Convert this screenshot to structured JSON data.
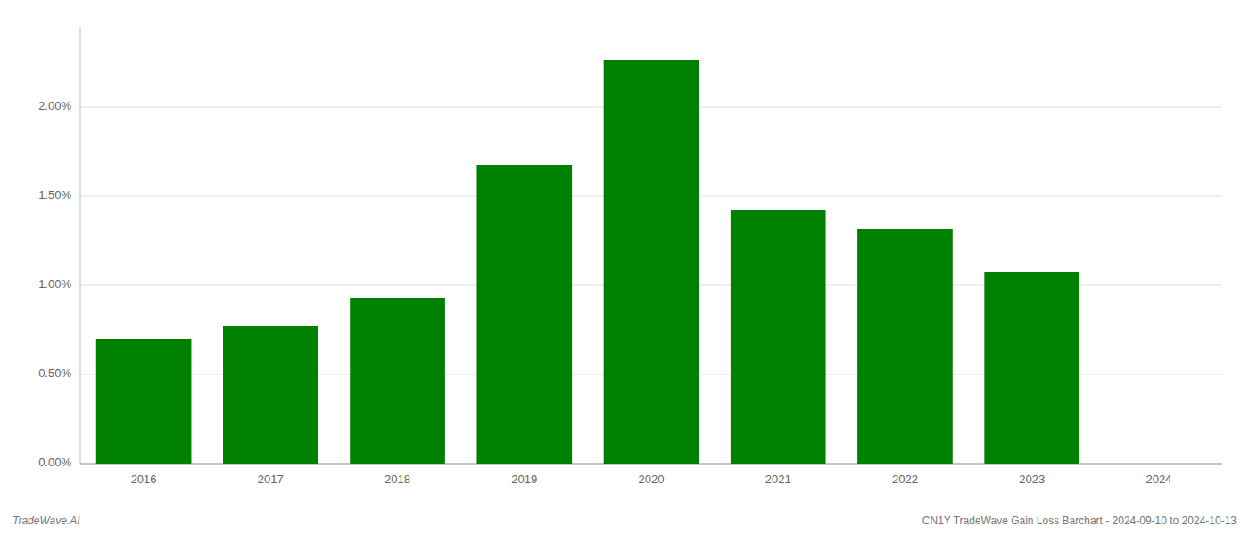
{
  "chart_data": {
    "type": "bar",
    "categories": [
      "2016",
      "2017",
      "2018",
      "2019",
      "2020",
      "2021",
      "2022",
      "2023",
      "2024"
    ],
    "values": [
      0.007,
      0.0077,
      0.0093,
      0.01675,
      0.02265,
      0.01425,
      0.01315,
      0.01075,
      0.0
    ],
    "color": "#008000",
    "ylim": [
      0,
      0.0245
    ],
    "yticks": [
      {
        "value": 0.0,
        "label": "0.00%"
      },
      {
        "value": 0.005,
        "label": "0.50%"
      },
      {
        "value": 0.01,
        "label": "1.00%"
      },
      {
        "value": 0.015,
        "label": "1.50%"
      },
      {
        "value": 0.02,
        "label": "2.00%"
      }
    ],
    "grid": true,
    "annotations": [
      "TradeWave.AI",
      "CN1Y TradeWave Gain Loss Barchart - 2024-09-10 to 2024-10-13"
    ]
  }
}
